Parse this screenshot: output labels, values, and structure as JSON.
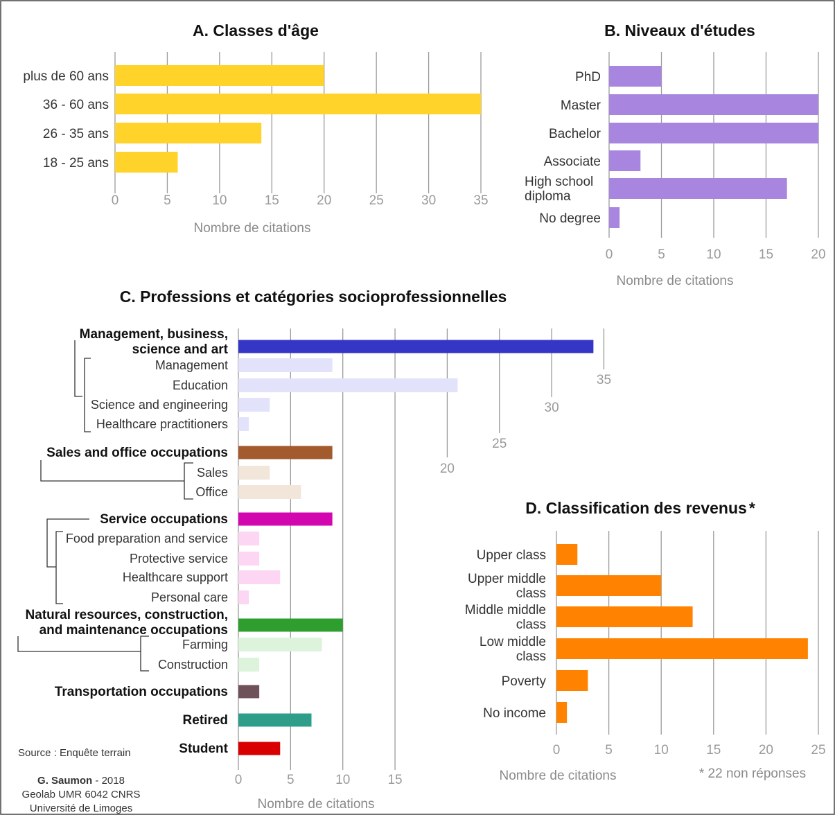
{
  "chart_data": [
    {
      "id": "A",
      "type": "bar",
      "orientation": "horizontal",
      "title": "A. Classes d'âge",
      "categories": [
        "plus de 60 ans",
        "36 - 60 ans",
        "26 - 35 ans",
        "18 - 25 ans"
      ],
      "values": [
        20,
        35,
        14,
        6
      ],
      "xlabel": "Nombre de citations",
      "xlim": [
        0,
        35
      ],
      "xticks": [
        0,
        5,
        10,
        15,
        20,
        25,
        30,
        35
      ],
      "color": "#FFD32A",
      "grid": true
    },
    {
      "id": "B",
      "type": "bar",
      "orientation": "horizontal",
      "title": "B. Niveaux d'études",
      "categories": [
        "PhD",
        "Master",
        "Bachelor",
        "Associate",
        "High school diploma",
        "No degree"
      ],
      "values": [
        5,
        20,
        20,
        3,
        17,
        1
      ],
      "xlabel": "Nombre de citations",
      "xlim": [
        0,
        20
      ],
      "xticks": [
        0,
        5,
        10,
        15,
        20
      ],
      "color": "#A886E0",
      "grid": true
    },
    {
      "id": "C",
      "type": "bar",
      "orientation": "horizontal",
      "title": "C. Professions et catégories socioprofessionnelles",
      "categories": [
        {
          "label": "Management, business, science and art",
          "value": 34,
          "level": "group",
          "color": "#3636C6"
        },
        {
          "label": "Management",
          "value": 9,
          "level": "sub",
          "color": "#E2E2FA"
        },
        {
          "label": "Education",
          "value": 21,
          "level": "sub",
          "color": "#E2E2FA"
        },
        {
          "label": "Science and engineering",
          "value": 3,
          "level": "sub",
          "color": "#E2E2FA"
        },
        {
          "label": "Healthcare practitioners",
          "value": 1,
          "level": "sub",
          "color": "#E2E2FA"
        },
        {
          "label": "Sales and office occupations",
          "value": 9,
          "level": "group",
          "color": "#A35A2D"
        },
        {
          "label": "Sales",
          "value": 3,
          "level": "sub",
          "color": "#F2E5DA"
        },
        {
          "label": "Office",
          "value": 6,
          "level": "sub",
          "color": "#F2E5DA"
        },
        {
          "label": "Service occupations",
          "value": 9,
          "level": "group",
          "color": "#D307B0"
        },
        {
          "label": "Food preparation and service",
          "value": 2,
          "level": "sub",
          "color": "#FCD6F2"
        },
        {
          "label": "Protective service",
          "value": 2,
          "level": "sub",
          "color": "#FCD6F2"
        },
        {
          "label": "Healthcare support",
          "value": 4,
          "level": "sub",
          "color": "#FCD6F2"
        },
        {
          "label": "Personal care",
          "value": 1,
          "level": "sub",
          "color": "#FCD6F2"
        },
        {
          "label": "Natural resources, construction, and maintenance occupations",
          "value": 10,
          "level": "group",
          "color": "#2E9E2E"
        },
        {
          "label": "Farming",
          "value": 8,
          "level": "sub",
          "color": "#DEF3DC"
        },
        {
          "label": "Construction",
          "value": 2,
          "level": "sub",
          "color": "#DEF3DC"
        },
        {
          "label": "Transportation occupations",
          "value": 2,
          "level": "group",
          "color": "#6E5159"
        },
        {
          "label": "Retired",
          "value": 7,
          "level": "group",
          "color": "#2E9E8A"
        },
        {
          "label": "Student",
          "value": 4,
          "level": "group",
          "color": "#D80000"
        }
      ],
      "xlabel": "Nombre de citations",
      "xlim": [
        0,
        35
      ],
      "xticks": [
        0,
        5,
        10,
        15,
        20,
        25,
        30,
        35
      ],
      "grid": true
    },
    {
      "id": "D",
      "type": "bar",
      "orientation": "horizontal",
      "title": "D. Classification des revenus",
      "title_mark": "*",
      "categories": [
        "Upper class",
        "Upper middle class",
        "Middle middle class",
        "Low middle class",
        "Poverty",
        "No income"
      ],
      "values": [
        2,
        10,
        13,
        24,
        3,
        1
      ],
      "xlabel": "Nombre de citations",
      "xlim": [
        0,
        25
      ],
      "xticks": [
        0,
        5,
        10,
        15,
        20,
        25
      ],
      "color": "#FF8200",
      "note": "* 22 non réponses",
      "grid": true
    }
  ],
  "source": "Source : Enquête terrain",
  "credit": {
    "author": "G. Saumon",
    "year_suffix": " - 2018",
    "lab": "Geolab UMR 6042 CNRS",
    "university": "Université de Limoges"
  }
}
